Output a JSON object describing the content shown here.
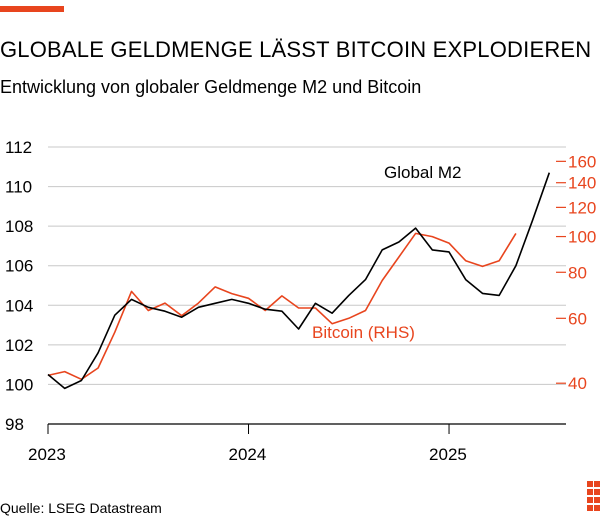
{
  "header": {
    "title": "GLOBALE GELDMENGE LÄSST BITCOIN EXPLODIEREN",
    "subtitle": "Entwicklung von globaler Geldmenge M2 und Bitcoin"
  },
  "footer": {
    "source": "Quelle: LSEG Datastream"
  },
  "colors": {
    "accent": "#e8451e",
    "m2_line": "#000000",
    "btc_line": "#e8451e",
    "grid": "#c8c8c8"
  },
  "chart_data": {
    "type": "line",
    "title": "GLOBALE GELDMENGE LÄSST BITCOIN EXPLODIEREN",
    "subtitle": "Entwicklung von globaler Geldmenge M2 und Bitcoin",
    "xlabel": "",
    "ylabel": "",
    "x_ticks": [
      "2023",
      "2024",
      "2025"
    ],
    "x_range": [
      "2023-01",
      "2025-08"
    ],
    "y_left": {
      "range": [
        98,
        112
      ],
      "ticks": [
        98,
        100,
        102,
        104,
        106,
        108,
        110,
        112
      ],
      "scale": "linear"
    },
    "y_right": {
      "range": [
        31,
        175
      ],
      "ticks": [
        40,
        60,
        80,
        100,
        120,
        140,
        160
      ],
      "scale": "log"
    },
    "grid": true,
    "series": [
      {
        "name": "Global M2",
        "axis": "left",
        "x": [
          "2023-01",
          "2023-02",
          "2023-03",
          "2023-04",
          "2023-05",
          "2023-06",
          "2023-07",
          "2023-08",
          "2023-09",
          "2023-10",
          "2023-11",
          "2023-12",
          "2024-01",
          "2024-02",
          "2024-03",
          "2024-04",
          "2024-05",
          "2024-06",
          "2024-07",
          "2024-08",
          "2024-09",
          "2024-10",
          "2024-11",
          "2024-12",
          "2025-01",
          "2025-02",
          "2025-03",
          "2025-04",
          "2025-05",
          "2025-06",
          "2025-07"
        ],
        "values": [
          100.5,
          99.8,
          100.2,
          101.6,
          103.5,
          104.3,
          103.9,
          103.7,
          103.4,
          103.9,
          104.1,
          104.3,
          104.1,
          103.8,
          103.7,
          102.8,
          104.1,
          103.6,
          104.5,
          105.3,
          106.8,
          107.2,
          107.9,
          106.8,
          106.7,
          105.3,
          104.6,
          104.5,
          106.0,
          108.3,
          110.7
        ]
      },
      {
        "name": "Bitcoin (RHS)",
        "axis": "right",
        "x": [
          "2023-01",
          "2023-02",
          "2023-03",
          "2023-04",
          "2023-05",
          "2023-06",
          "2023-07",
          "2023-08",
          "2023-09",
          "2023-10",
          "2023-11",
          "2023-12",
          "2024-01",
          "2024-02",
          "2024-03",
          "2024-04",
          "2024-05",
          "2024-06",
          "2024-07",
          "2024-08",
          "2024-09",
          "2024-10",
          "2024-11",
          "2024-12",
          "2025-01",
          "2025-02",
          "2025-03",
          "2025-04",
          "2025-05"
        ],
        "values": [
          42,
          43,
          41,
          44,
          55,
          71,
          63,
          66,
          61,
          66,
          73,
          70,
          68,
          63,
          69,
          64,
          64,
          58,
          60,
          63,
          76,
          88,
          102,
          100,
          96,
          86,
          83,
          86,
          102
        ]
      }
    ],
    "annotations": [
      {
        "text": "Global M2",
        "series": "Global M2"
      },
      {
        "text": "Bitcoin (RHS)",
        "series": "Bitcoin (RHS)"
      }
    ]
  }
}
